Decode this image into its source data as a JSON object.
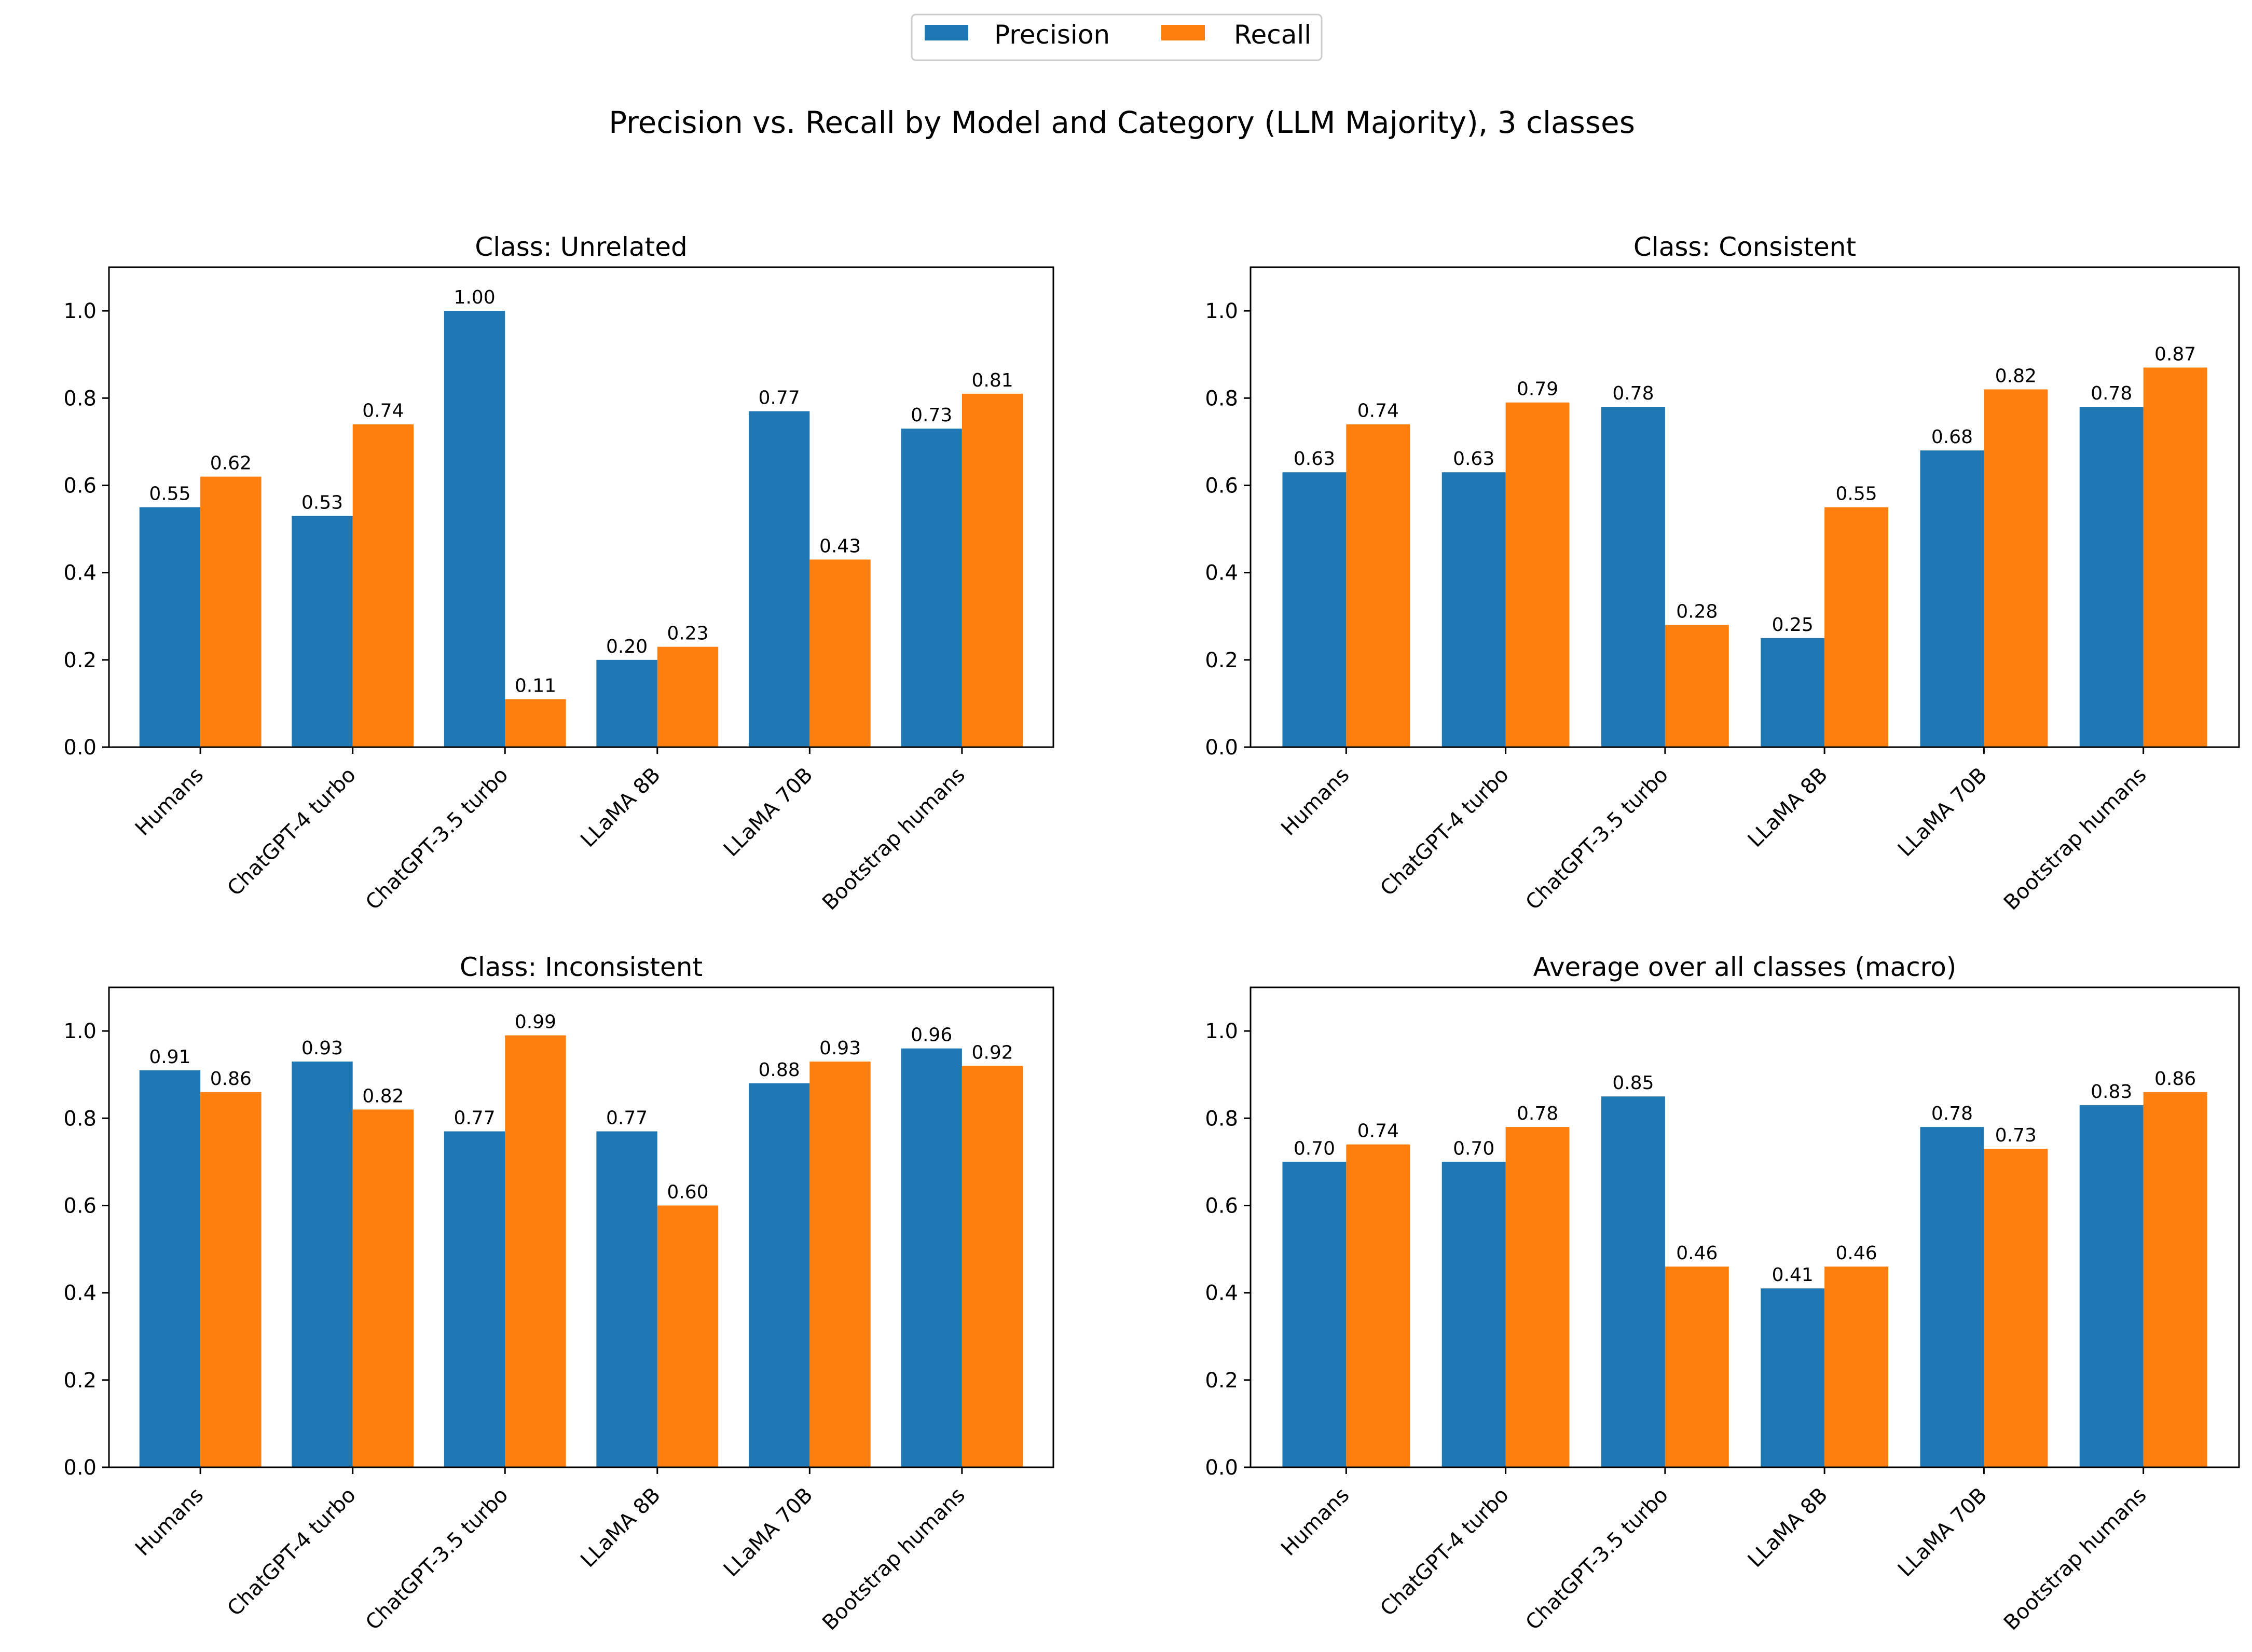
{
  "figure": {
    "title": "Precision vs. Recall by Model and Category (LLM Majority), 3 classes",
    "legend": {
      "placement": "top-center"
    }
  },
  "colors": {
    "Precision": "#1f77b4",
    "Recall": "#ff7f0e"
  },
  "chart_data": [
    {
      "type": "bar",
      "title": "Class: Unrelated",
      "categories": [
        "Humans",
        "ChatGPT-4 turbo",
        "ChatGPT-3.5 turbo",
        "LLaMA 8B",
        "LLaMA 70B",
        "Bootstrap humans"
      ],
      "series": [
        {
          "name": "Precision",
          "values": [
            0.55,
            0.53,
            1.0,
            0.2,
            0.77,
            0.73
          ],
          "labels": [
            "0.55",
            "0.53",
            "1.00",
            "0.20",
            "0.77",
            "0.73"
          ]
        },
        {
          "name": "Recall",
          "values": [
            0.62,
            0.74,
            0.11,
            0.23,
            0.43,
            0.81
          ],
          "labels": [
            "0.62",
            "0.74",
            "0.11",
            "0.23",
            "0.43",
            "0.81"
          ]
        }
      ],
      "ylim": [
        0,
        1.1
      ],
      "yticks": [
        "0.0",
        "0.2",
        "0.4",
        "0.6",
        "0.8",
        "1.0"
      ],
      "grid": false
    },
    {
      "type": "bar",
      "title": "Class: Consistent",
      "categories": [
        "Humans",
        "ChatGPT-4 turbo",
        "ChatGPT-3.5 turbo",
        "LLaMA 8B",
        "LLaMA 70B",
        "Bootstrap humans"
      ],
      "series": [
        {
          "name": "Precision",
          "values": [
            0.63,
            0.63,
            0.78,
            0.25,
            0.68,
            0.78
          ],
          "labels": [
            "0.63",
            "0.63",
            "0.78",
            "0.25",
            "0.68",
            "0.78"
          ]
        },
        {
          "name": "Recall",
          "values": [
            0.74,
            0.79,
            0.28,
            0.55,
            0.82,
            0.87
          ],
          "labels": [
            "0.74",
            "0.79",
            "0.28",
            "0.55",
            "0.82",
            "0.87"
          ]
        }
      ],
      "ylim": [
        0,
        1.1
      ],
      "yticks": [
        "0.0",
        "0.2",
        "0.4",
        "0.6",
        "0.8",
        "1.0"
      ],
      "grid": false
    },
    {
      "type": "bar",
      "title": "Class: Inconsistent",
      "categories": [
        "Humans",
        "ChatGPT-4 turbo",
        "ChatGPT-3.5 turbo",
        "LLaMA 8B",
        "LLaMA 70B",
        "Bootstrap humans"
      ],
      "series": [
        {
          "name": "Precision",
          "values": [
            0.91,
            0.93,
            0.77,
            0.77,
            0.88,
            0.96
          ],
          "labels": [
            "0.91",
            "0.93",
            "0.77",
            "0.77",
            "0.88",
            "0.96"
          ]
        },
        {
          "name": "Recall",
          "values": [
            0.86,
            0.82,
            0.99,
            0.6,
            0.93,
            0.92
          ],
          "labels": [
            "0.86",
            "0.82",
            "0.99",
            "0.60",
            "0.93",
            "0.92"
          ]
        }
      ],
      "ylim": [
        0,
        1.1
      ],
      "yticks": [
        "0.0",
        "0.2",
        "0.4",
        "0.6",
        "0.8",
        "1.0"
      ],
      "grid": false
    },
    {
      "type": "bar",
      "title": "Average over all classes (macro)",
      "categories": [
        "Humans",
        "ChatGPT-4 turbo",
        "ChatGPT-3.5 turbo",
        "LLaMA 8B",
        "LLaMA 70B",
        "Bootstrap humans"
      ],
      "series": [
        {
          "name": "Precision",
          "values": [
            0.7,
            0.7,
            0.85,
            0.41,
            0.78,
            0.83
          ],
          "labels": [
            "0.70",
            "0.70",
            "0.85",
            "0.41",
            "0.78",
            "0.83"
          ]
        },
        {
          "name": "Recall",
          "values": [
            0.74,
            0.78,
            0.46,
            0.46,
            0.73,
            0.86
          ],
          "labels": [
            "0.74",
            "0.78",
            "0.46",
            "0.46",
            "0.73",
            "0.86"
          ]
        }
      ],
      "ylim": [
        0,
        1.1
      ],
      "yticks": [
        "0.0",
        "0.2",
        "0.4",
        "0.6",
        "0.8",
        "1.0"
      ],
      "grid": false
    }
  ]
}
